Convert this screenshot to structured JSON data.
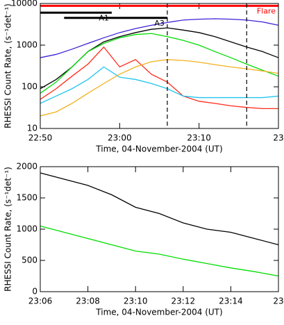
{
  "chart_data": [
    {
      "type": "line",
      "log_y": true,
      "xlabel": "Time, 04-November-2004 (UT)",
      "ylabel": "RHESSI Count Rate, (s⁻¹det⁻¹)",
      "x": [
        "22:50",
        "22:52",
        "22:54",
        "22:56",
        "22:58",
        "23:00",
        "23:02",
        "23:04",
        "23:06",
        "23:08",
        "23:10",
        "23:12",
        "23:14",
        "23:16",
        "23:18",
        "23:20"
      ],
      "series": [
        {
          "color": "#3b22d8",
          "values": [
            500,
            600,
            800,
            1100,
            1500,
            2000,
            2500,
            3000,
            3500,
            4000,
            4200,
            4300,
            4200,
            4000,
            3600,
            3000
          ]
        },
        {
          "color": "#000000",
          "values": [
            90,
            150,
            300,
            700,
            1200,
            1600,
            2000,
            2400,
            2600,
            2300,
            2000,
            1600,
            1200,
            900,
            700,
            500
          ]
        },
        {
          "color": "#00dd00",
          "values": [
            70,
            130,
            300,
            700,
            1100,
            1500,
            1800,
            1900,
            1600,
            1300,
            1000,
            700,
            500,
            350,
            250,
            180
          ]
        },
        {
          "color": "#ff2a1a",
          "values": [
            50,
            90,
            180,
            350,
            900,
            300,
            450,
            200,
            130,
            60,
            45,
            40,
            35,
            32,
            30,
            30
          ]
        },
        {
          "color": "#20c4f0",
          "values": [
            40,
            60,
            90,
            150,
            300,
            170,
            150,
            120,
            90,
            60,
            55,
            55,
            55,
            55,
            55,
            60
          ]
        },
        {
          "color": "#f2b01e",
          "values": [
            20,
            25,
            40,
            70,
            120,
            200,
            300,
            400,
            450,
            430,
            390,
            340,
            300,
            270,
            240,
            210
          ]
        }
      ],
      "intervals": [
        {
          "label": "Flare",
          "start": "22:50",
          "end": "23:20",
          "level": 8800,
          "color": "#ff0000"
        },
        {
          "label": "A1",
          "start": "22:50",
          "end": "22:59",
          "level": 6000,
          "color": "#000000"
        },
        {
          "label": "A3",
          "start": "22:53",
          "end": "23:06",
          "level": 4500,
          "color": "#000000"
        }
      ],
      "markers": [
        "23:06",
        "23:16"
      ],
      "xlim": [
        "22:50",
        "23:20"
      ],
      "xticks": [
        "22:50",
        "23:00",
        "23:10",
        {
          "value": "23:20",
          "label": "23"
        }
      ],
      "ylim": [
        10,
        10000
      ],
      "yticks": [
        10,
        100,
        1000,
        10000
      ]
    },
    {
      "type": "line",
      "log_y": false,
      "xlabel": "Time, 04-November-2004 (UT)",
      "ylabel": "RHESSI Count Rate, (s⁻¹det⁻¹)",
      "x": [
        "23:06",
        "23:07",
        "23:08",
        "23:09",
        "23:10",
        "23:11",
        "23:12",
        "23:13",
        "23:14",
        "23:15",
        "23:16"
      ],
      "series": [
        {
          "color": "#000000",
          "values": [
            1900,
            1800,
            1700,
            1550,
            1350,
            1250,
            1100,
            1000,
            950,
            850,
            750
          ]
        },
        {
          "color": "#00dd00",
          "values": [
            1050,
            950,
            850,
            750,
            650,
            600,
            520,
            450,
            380,
            320,
            250
          ]
        }
      ],
      "xlim": [
        "23:06",
        "23:16"
      ],
      "xticks": [
        "23:06",
        "23:08",
        "23:10",
        "23:12",
        "23:14",
        {
          "value": "23:16",
          "label": "23"
        }
      ],
      "ylim": [
        0,
        2000
      ],
      "yticks": [
        0,
        500,
        1000,
        1500,
        2000
      ]
    }
  ]
}
